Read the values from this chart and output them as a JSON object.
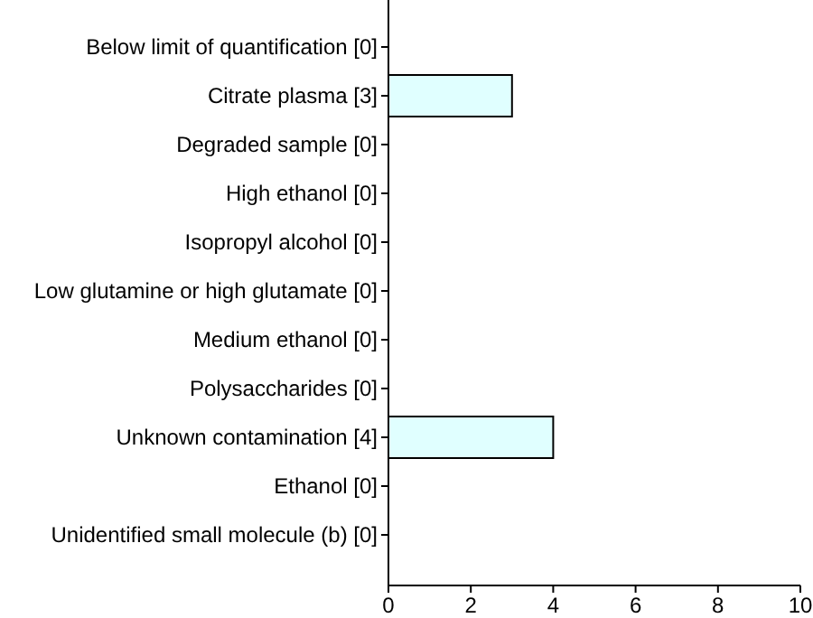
{
  "chart_data": {
    "type": "bar",
    "orientation": "horizontal",
    "categories": [
      "Below limit of quantification [0]",
      "Citrate plasma [3]",
      "Degraded sample [0]",
      "High ethanol [0]",
      "Isopropyl alcohol [0]",
      "Low glutamine or high glutamate [0]",
      "Medium ethanol [0]",
      "Polysaccharides [0]",
      "Unknown contamination [4]",
      "Ethanol [0]",
      "Unidentified small molecule (b) [0]"
    ],
    "values": [
      0,
      3,
      0,
      0,
      0,
      0,
      0,
      0,
      4,
      0,
      0
    ],
    "color": "#e0ffff",
    "xlim": [
      0,
      10
    ],
    "xticks": [
      0,
      2,
      4,
      6,
      8,
      10
    ],
    "grid": false
  }
}
